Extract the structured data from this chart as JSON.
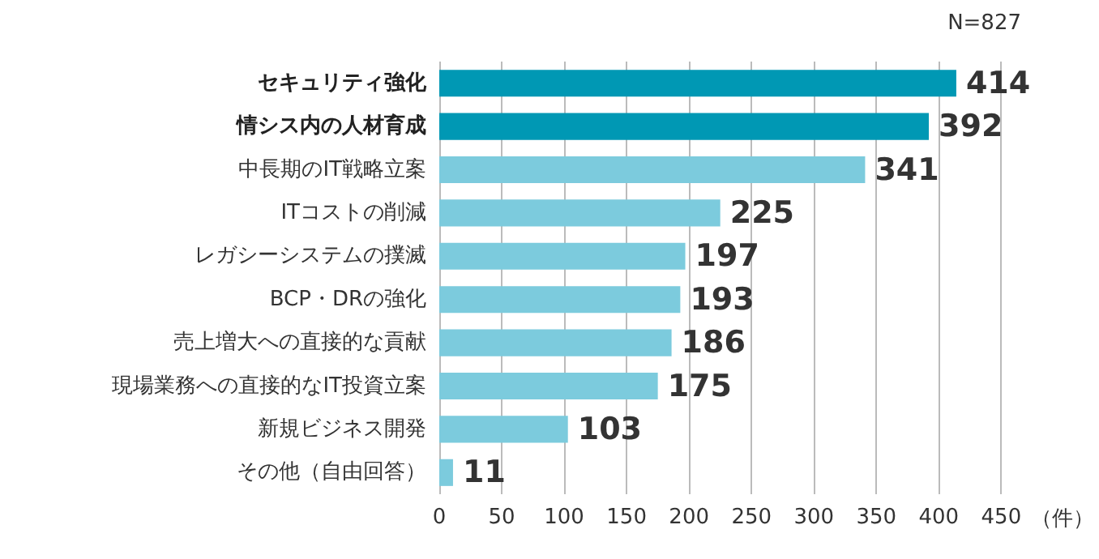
{
  "chart_data": {
    "type": "bar",
    "orientation": "horizontal",
    "categories": [
      "セキュリティ強化",
      "情シス内の人材育成",
      "中長期のIT戦略立案",
      "ITコストの削減",
      "レガシーシステムの撲滅",
      "BCP・DRの強化",
      "売上増大への直接的な貢献",
      "現場業務への直接的なIT投資立案",
      "新規ビジネス開発",
      "その他（自由回答）"
    ],
    "values": [
      414,
      392,
      341,
      225,
      197,
      193,
      186,
      175,
      103,
      11
    ],
    "colors": [
      "#0098b4",
      "#0098b4",
      "#7ccbdd",
      "#7ccbdd",
      "#7ccbdd",
      "#7ccbdd",
      "#7ccbdd",
      "#7ccbdd",
      "#7ccbdd",
      "#7ccbdd"
    ],
    "xlim": [
      0,
      450
    ],
    "xticks": [
      0,
      50,
      100,
      150,
      200,
      250,
      300,
      350,
      400,
      450
    ],
    "xlabel": "（件）",
    "annotations": [
      "N=827"
    ],
    "grid": "x",
    "data_labels": true
  }
}
